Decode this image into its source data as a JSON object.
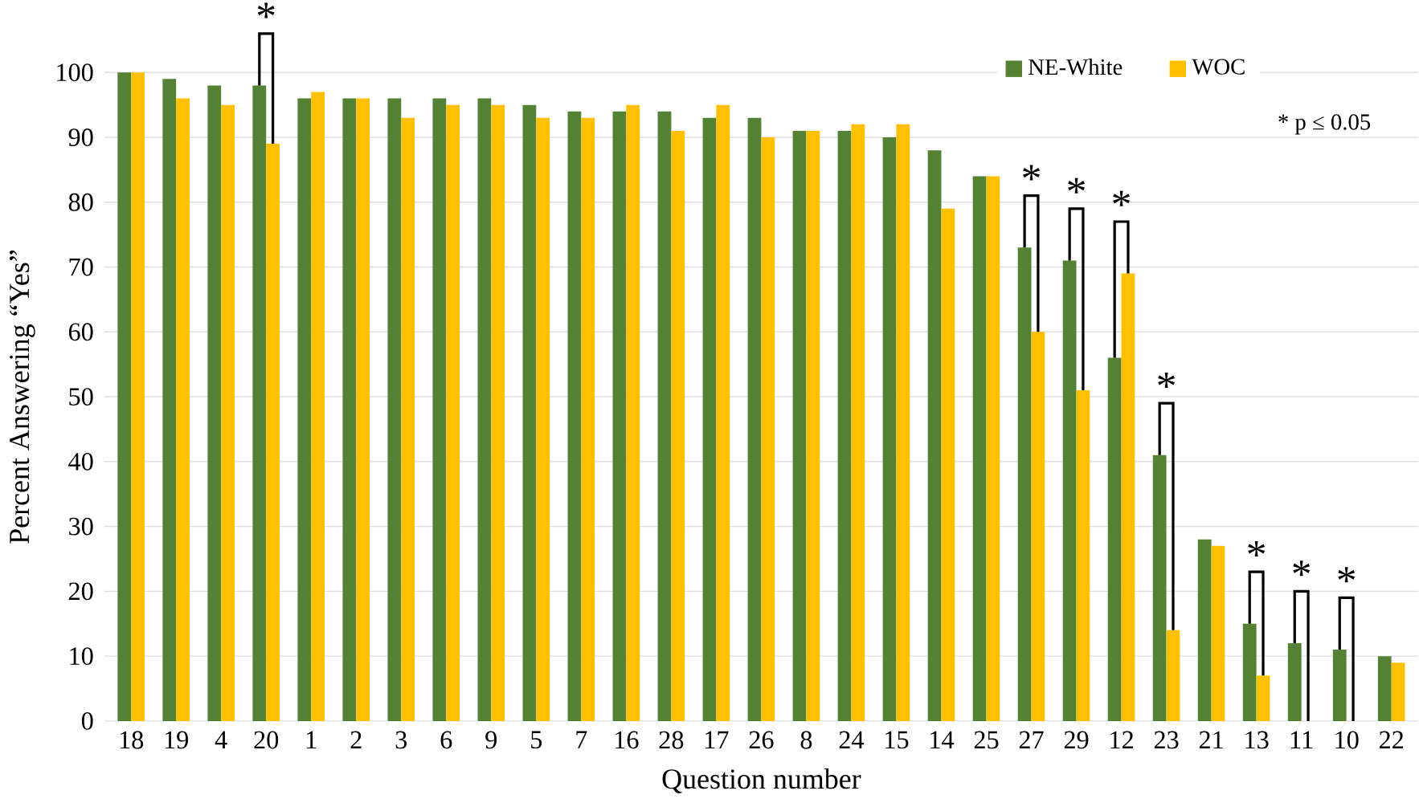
{
  "chart_data": {
    "type": "bar",
    "xlabel": "Question number",
    "ylabel": "Percent Answering “Yes”",
    "categories": [
      "18",
      "19",
      "4",
      "20",
      "1",
      "2",
      "3",
      "6",
      "9",
      "5",
      "7",
      "16",
      "28",
      "17",
      "26",
      "8",
      "24",
      "15",
      "14",
      "25",
      "27",
      "29",
      "12",
      "23",
      "21",
      "13",
      "11",
      "10",
      "22"
    ],
    "series": [
      {
        "name": "NE-White",
        "color": "#548235",
        "values": [
          100,
          99,
          98,
          98,
          96,
          96,
          96,
          96,
          96,
          95,
          94,
          94,
          94,
          93,
          93,
          91,
          91,
          90,
          88,
          84,
          73,
          71,
          56,
          41,
          28,
          15,
          12,
          11,
          10
        ]
      },
      {
        "name": "WOC",
        "color": "#ffc000",
        "values": [
          100,
          96,
          95,
          89,
          97,
          96,
          93,
          95,
          95,
          93,
          93,
          95,
          91,
          95,
          90,
          91,
          92,
          92,
          79,
          84,
          60,
          51,
          69,
          14,
          27,
          7,
          0,
          0,
          9
        ]
      }
    ],
    "ylim": [
      0,
      100
    ],
    "yticks": [
      0,
      10,
      20,
      30,
      40,
      50,
      60,
      70,
      80,
      90,
      100
    ],
    "grid": "y",
    "legend": "top right",
    "annotations": [
      {
        "text": "*",
        "x": "20",
        "y": 98
      },
      {
        "text": "*",
        "x": "27",
        "y": 73
      },
      {
        "text": "*",
        "x": "29",
        "y": 71
      },
      {
        "text": "*",
        "x": "12",
        "y": 69
      },
      {
        "text": "*",
        "x": "23",
        "y": 41
      },
      {
        "text": "*",
        "x": "13",
        "y": 15
      },
      {
        "text": "*",
        "x": "11",
        "y": 12
      },
      {
        "text": "*",
        "x": "10",
        "y": 11
      },
      "* p ≤ 0.05"
    ]
  }
}
